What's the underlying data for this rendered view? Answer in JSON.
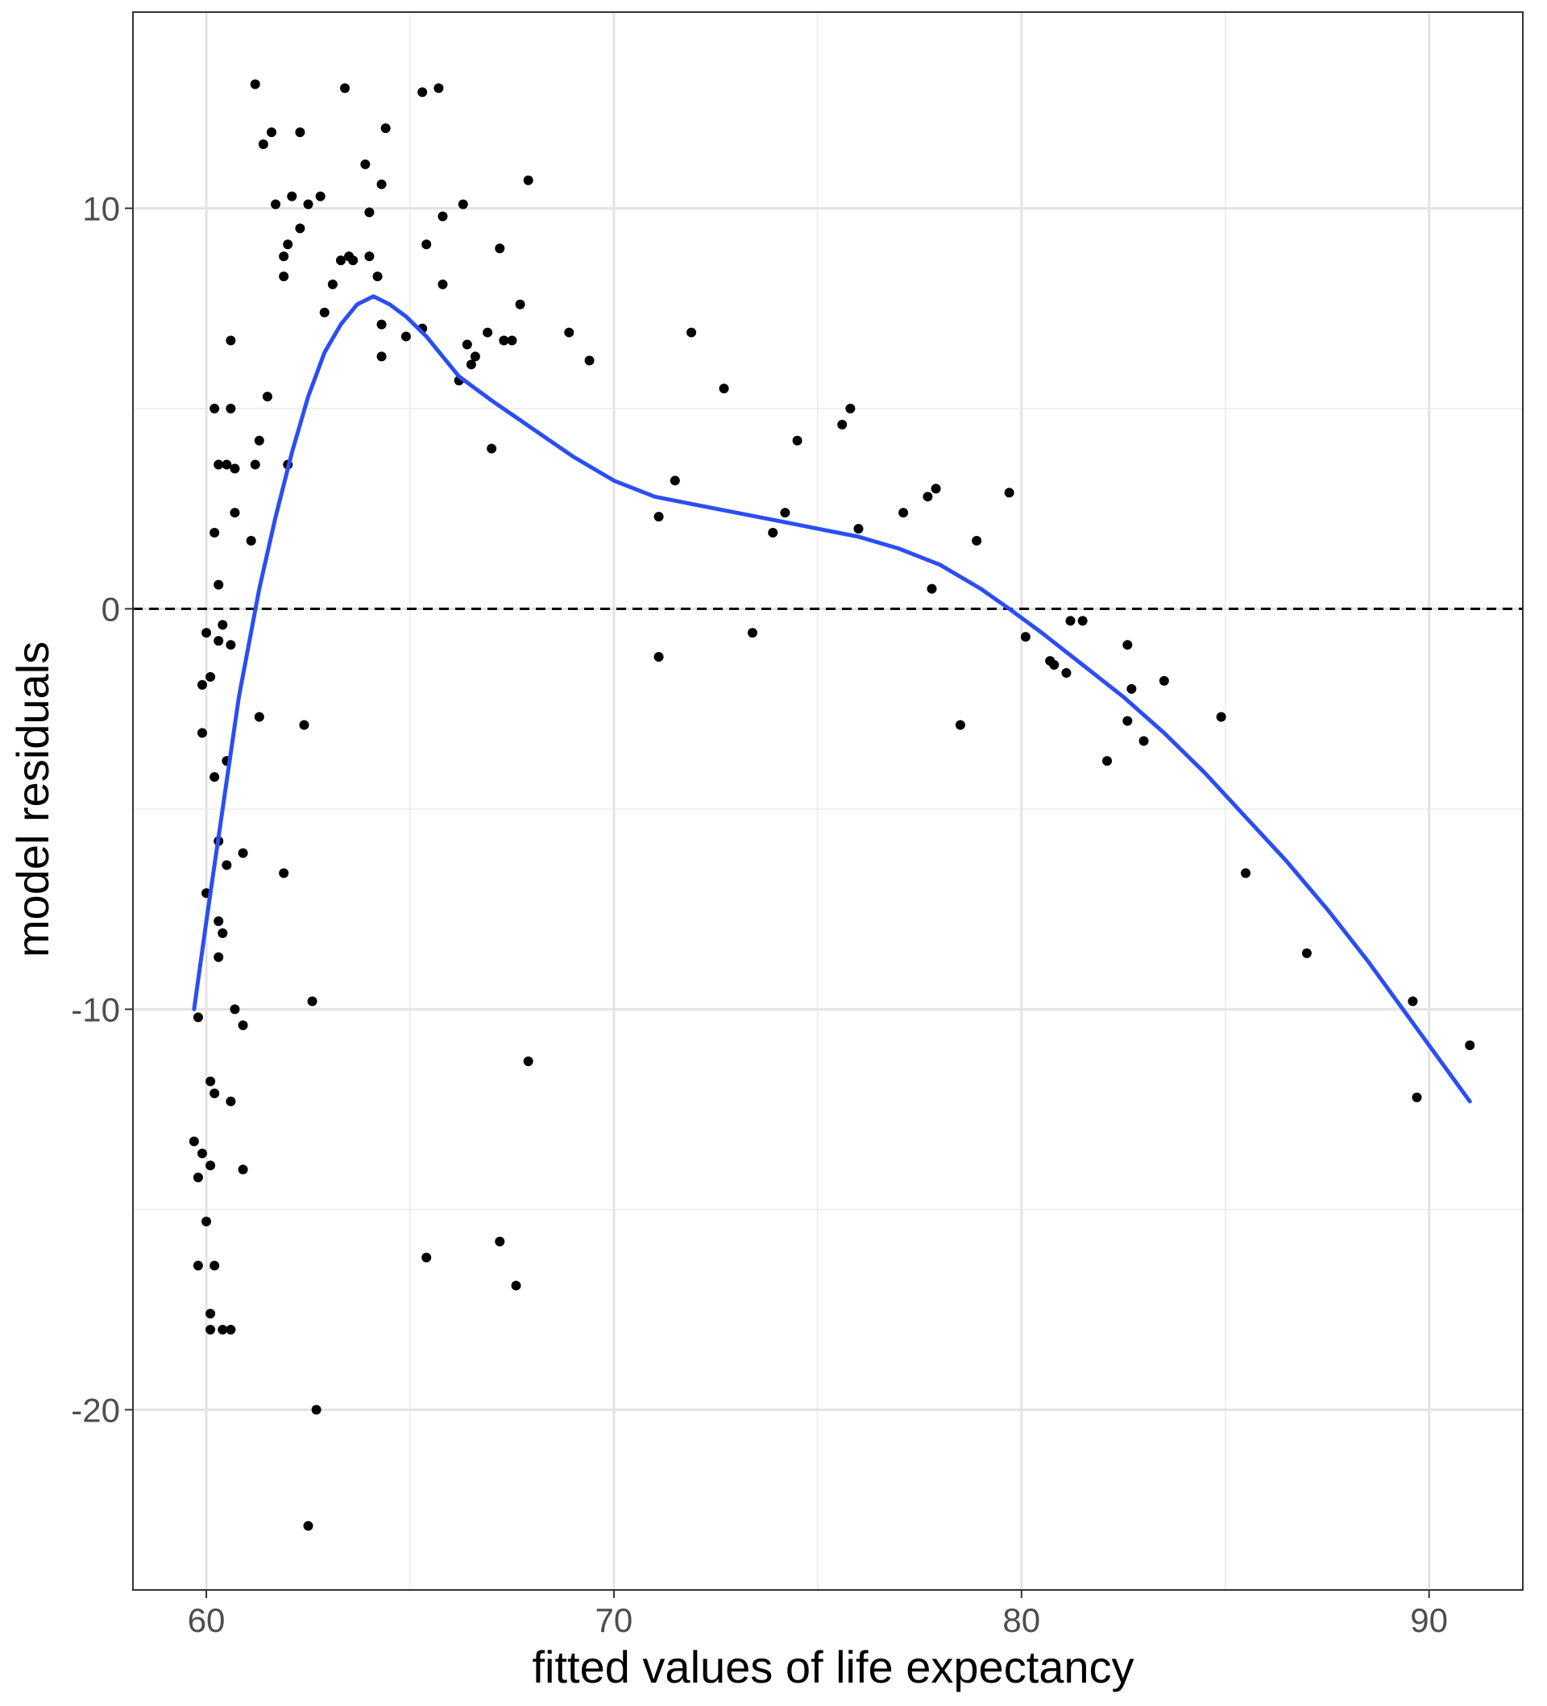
{
  "chart_data": {
    "type": "scatter",
    "title": "",
    "xlabel": "fitted values of life expectancy",
    "ylabel": "model residuals",
    "xlim": [
      58.2,
      92.3
    ],
    "ylim": [
      -24.5,
      14.9
    ],
    "x_ticks": [
      60,
      70,
      80,
      90
    ],
    "x_tick_labels": [
      "60",
      "70",
      "80",
      "90"
    ],
    "y_ticks": [
      -20,
      -10,
      0,
      10
    ],
    "y_tick_labels": [
      "-20",
      "-10",
      "0",
      "10"
    ],
    "x_minor": [
      65,
      75,
      85
    ],
    "y_minor": [
      -15,
      -5,
      5
    ],
    "grid": true,
    "reference_line": {
      "y": 0,
      "style": "dashed",
      "color": "#000000"
    },
    "point_color": "#000000",
    "smooth_color": "#2b4ef2",
    "points": [
      [
        61.2,
        13.1
      ],
      [
        63.4,
        13.0
      ],
      [
        65.3,
        12.9
      ],
      [
        65.7,
        13.0
      ],
      [
        61.4,
        11.6
      ],
      [
        61.6,
        11.9
      ],
      [
        62.3,
        11.9
      ],
      [
        64.4,
        12.0
      ],
      [
        63.9,
        11.1
      ],
      [
        64.3,
        10.6
      ],
      [
        67.9,
        10.7
      ],
      [
        61.7,
        10.1
      ],
      [
        62.1,
        10.3
      ],
      [
        62.5,
        10.1
      ],
      [
        62.8,
        10.3
      ],
      [
        66.3,
        10.1
      ],
      [
        64.0,
        9.9
      ],
      [
        65.8,
        9.8
      ],
      [
        62.3,
        9.5
      ],
      [
        62.0,
        9.1
      ],
      [
        61.9,
        8.8
      ],
      [
        63.3,
        8.7
      ],
      [
        63.5,
        8.8
      ],
      [
        63.6,
        8.7
      ],
      [
        64.0,
        8.8
      ],
      [
        65.4,
        9.1
      ],
      [
        67.2,
        9.0
      ],
      [
        61.9,
        8.3
      ],
      [
        63.1,
        8.1
      ],
      [
        64.2,
        8.3
      ],
      [
        65.8,
        8.1
      ],
      [
        67.7,
        7.6
      ],
      [
        62.9,
        7.4
      ],
      [
        64.3,
        7.1
      ],
      [
        65.3,
        7.0
      ],
      [
        64.9,
        6.8
      ],
      [
        66.9,
        6.9
      ],
      [
        67.3,
        6.7
      ],
      [
        67.5,
        6.7
      ],
      [
        68.9,
        6.9
      ],
      [
        71.9,
        6.9
      ],
      [
        60.6,
        6.7
      ],
      [
        66.4,
        6.6
      ],
      [
        64.3,
        6.3
      ],
      [
        66.6,
        6.3
      ],
      [
        66.5,
        6.1
      ],
      [
        69.4,
        6.2
      ],
      [
        66.2,
        5.7
      ],
      [
        72.7,
        5.5
      ],
      [
        61.5,
        5.3
      ],
      [
        60.2,
        5.0
      ],
      [
        60.6,
        5.0
      ],
      [
        75.8,
        5.0
      ],
      [
        75.6,
        4.6
      ],
      [
        61.3,
        4.2
      ],
      [
        67.0,
        4.0
      ],
      [
        74.5,
        4.2
      ],
      [
        60.3,
        3.6
      ],
      [
        60.5,
        3.6
      ],
      [
        60.7,
        3.5
      ],
      [
        61.2,
        3.6
      ],
      [
        62.0,
        3.6
      ],
      [
        71.5,
        3.2
      ],
      [
        77.9,
        3.0
      ],
      [
        77.7,
        2.8
      ],
      [
        79.7,
        2.9
      ],
      [
        60.7,
        2.4
      ],
      [
        71.1,
        2.3
      ],
      [
        74.2,
        2.4
      ],
      [
        77.1,
        2.4
      ],
      [
        60.2,
        1.9
      ],
      [
        61.1,
        1.7
      ],
      [
        73.9,
        1.9
      ],
      [
        76.0,
        2.0
      ],
      [
        78.9,
        1.7
      ],
      [
        60.3,
        0.6
      ],
      [
        77.8,
        0.5
      ],
      [
        60.4,
        -0.4
      ],
      [
        60.0,
        -0.6
      ],
      [
        60.3,
        -0.8
      ],
      [
        60.6,
        -0.9
      ],
      [
        73.4,
        -0.6
      ],
      [
        80.1,
        -0.7
      ],
      [
        81.2,
        -0.3
      ],
      [
        81.5,
        -0.3
      ],
      [
        82.6,
        -0.9
      ],
      [
        59.9,
        -1.9
      ],
      [
        60.1,
        -1.7
      ],
      [
        71.1,
        -1.2
      ],
      [
        80.7,
        -1.3
      ],
      [
        80.8,
        -1.4
      ],
      [
        81.1,
        -1.6
      ],
      [
        82.7,
        -2.0
      ],
      [
        83.5,
        -1.8
      ],
      [
        61.3,
        -2.7
      ],
      [
        62.4,
        -2.9
      ],
      [
        78.5,
        -2.9
      ],
      [
        82.6,
        -2.8
      ],
      [
        84.9,
        -2.7
      ],
      [
        59.9,
        -3.1
      ],
      [
        83.0,
        -3.3
      ],
      [
        60.5,
        -3.8
      ],
      [
        82.1,
        -3.8
      ],
      [
        60.2,
        -4.2
      ],
      [
        60.3,
        -5.8
      ],
      [
        60.9,
        -6.1
      ],
      [
        60.5,
        -6.4
      ],
      [
        61.9,
        -6.6
      ],
      [
        85.5,
        -6.6
      ],
      [
        60.0,
        -7.1
      ],
      [
        60.3,
        -7.8
      ],
      [
        60.4,
        -8.1
      ],
      [
        60.3,
        -8.7
      ],
      [
        87.0,
        -8.6
      ],
      [
        62.6,
        -9.8
      ],
      [
        89.6,
        -9.8
      ],
      [
        60.7,
        -10.0
      ],
      [
        59.8,
        -10.2
      ],
      [
        60.9,
        -10.4
      ],
      [
        91.0,
        -10.9
      ],
      [
        67.9,
        -11.3
      ],
      [
        60.1,
        -11.8
      ],
      [
        60.2,
        -12.1
      ],
      [
        60.6,
        -12.3
      ],
      [
        89.7,
        -12.2
      ],
      [
        59.7,
        -13.3
      ],
      [
        59.9,
        -13.6
      ],
      [
        60.1,
        -13.9
      ],
      [
        60.9,
        -14.0
      ],
      [
        59.8,
        -14.2
      ],
      [
        60.0,
        -15.3
      ],
      [
        67.2,
        -15.8
      ],
      [
        65.4,
        -16.2
      ],
      [
        59.8,
        -16.4
      ],
      [
        60.2,
        -16.4
      ],
      [
        67.6,
        -16.9
      ],
      [
        60.1,
        -17.6
      ],
      [
        60.1,
        -18.0
      ],
      [
        60.4,
        -18.0
      ],
      [
        60.6,
        -18.0
      ],
      [
        62.7,
        -20.0
      ],
      [
        62.5,
        -22.9
      ]
    ],
    "smooth": [
      [
        59.7,
        -10.0
      ],
      [
        60.0,
        -7.8
      ],
      [
        60.4,
        -5.0
      ],
      [
        60.8,
        -2.2
      ],
      [
        61.3,
        0.5
      ],
      [
        61.7,
        2.3
      ],
      [
        62.1,
        3.9
      ],
      [
        62.5,
        5.3
      ],
      [
        62.9,
        6.4
      ],
      [
        63.3,
        7.1
      ],
      [
        63.7,
        7.6
      ],
      [
        64.1,
        7.8
      ],
      [
        64.5,
        7.6
      ],
      [
        64.9,
        7.3
      ],
      [
        65.4,
        6.8
      ],
      [
        65.8,
        6.3
      ],
      [
        66.2,
        5.8
      ],
      [
        67.0,
        5.2
      ],
      [
        68.0,
        4.5
      ],
      [
        69.0,
        3.8
      ],
      [
        70.0,
        3.2
      ],
      [
        71.0,
        2.8
      ],
      [
        72.0,
        2.6
      ],
      [
        73.0,
        2.4
      ],
      [
        74.0,
        2.2
      ],
      [
        75.0,
        2.0
      ],
      [
        76.0,
        1.8
      ],
      [
        77.0,
        1.5
      ],
      [
        78.0,
        1.1
      ],
      [
        79.0,
        0.5
      ],
      [
        79.7,
        0.0
      ],
      [
        80.5,
        -0.6
      ],
      [
        81.5,
        -1.4
      ],
      [
        82.5,
        -2.2
      ],
      [
        83.5,
        -3.1
      ],
      [
        84.5,
        -4.1
      ],
      [
        85.5,
        -5.2
      ],
      [
        86.5,
        -6.3
      ],
      [
        87.5,
        -7.5
      ],
      [
        88.5,
        -8.8
      ],
      [
        89.5,
        -10.2
      ],
      [
        90.5,
        -11.6
      ],
      [
        91.0,
        -12.3
      ]
    ]
  }
}
